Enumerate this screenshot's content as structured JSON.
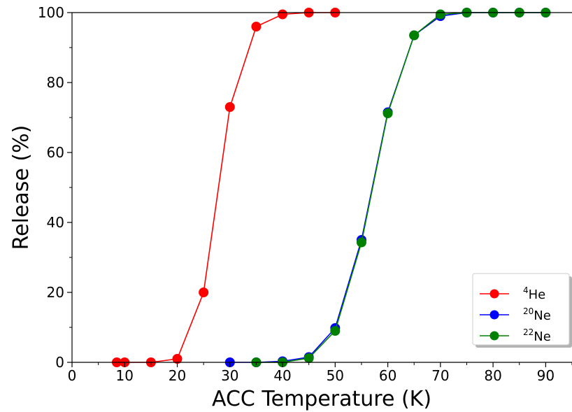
{
  "chart_data": {
    "type": "line",
    "xlabel": "ACC Temperature (K)",
    "ylabel": "Release (%)",
    "xlim": [
      0,
      95
    ],
    "ylim": [
      0,
      100
    ],
    "xticks": [
      "0",
      "10",
      "20",
      "30",
      "40",
      "50",
      "60",
      "70",
      "80",
      "90"
    ],
    "yticks": [
      "0",
      "20",
      "40",
      "60",
      "80",
      "100"
    ],
    "grid": false,
    "legend_position": "bottom-right",
    "series": [
      {
        "name_sup": "4",
        "name_base": "He",
        "color": "#ff0000",
        "x": [
          8.5,
          10,
          15,
          20,
          25,
          30,
          35,
          40,
          45,
          50
        ],
        "y": [
          0,
          0,
          0,
          1,
          20,
          73,
          96,
          99.5,
          100,
          100
        ]
      },
      {
        "name_sup": "20",
        "name_base": "Ne",
        "color": "#0000ff",
        "x": [
          30,
          35,
          40,
          45,
          50,
          55,
          60,
          65,
          70,
          75,
          80,
          85,
          90
        ],
        "y": [
          0,
          0,
          0.3,
          1.5,
          9.8,
          35,
          71.5,
          93.5,
          99,
          100,
          100,
          100,
          100
        ]
      },
      {
        "name_sup": "22",
        "name_base": "Ne",
        "color": "#008000",
        "x": [
          35,
          40,
          45,
          50,
          55,
          60,
          65,
          70,
          75,
          80,
          85,
          90
        ],
        "y": [
          0,
          0,
          1.2,
          9,
          34.3,
          71.2,
          93.5,
          99.5,
          100,
          100,
          100,
          100
        ]
      }
    ]
  }
}
